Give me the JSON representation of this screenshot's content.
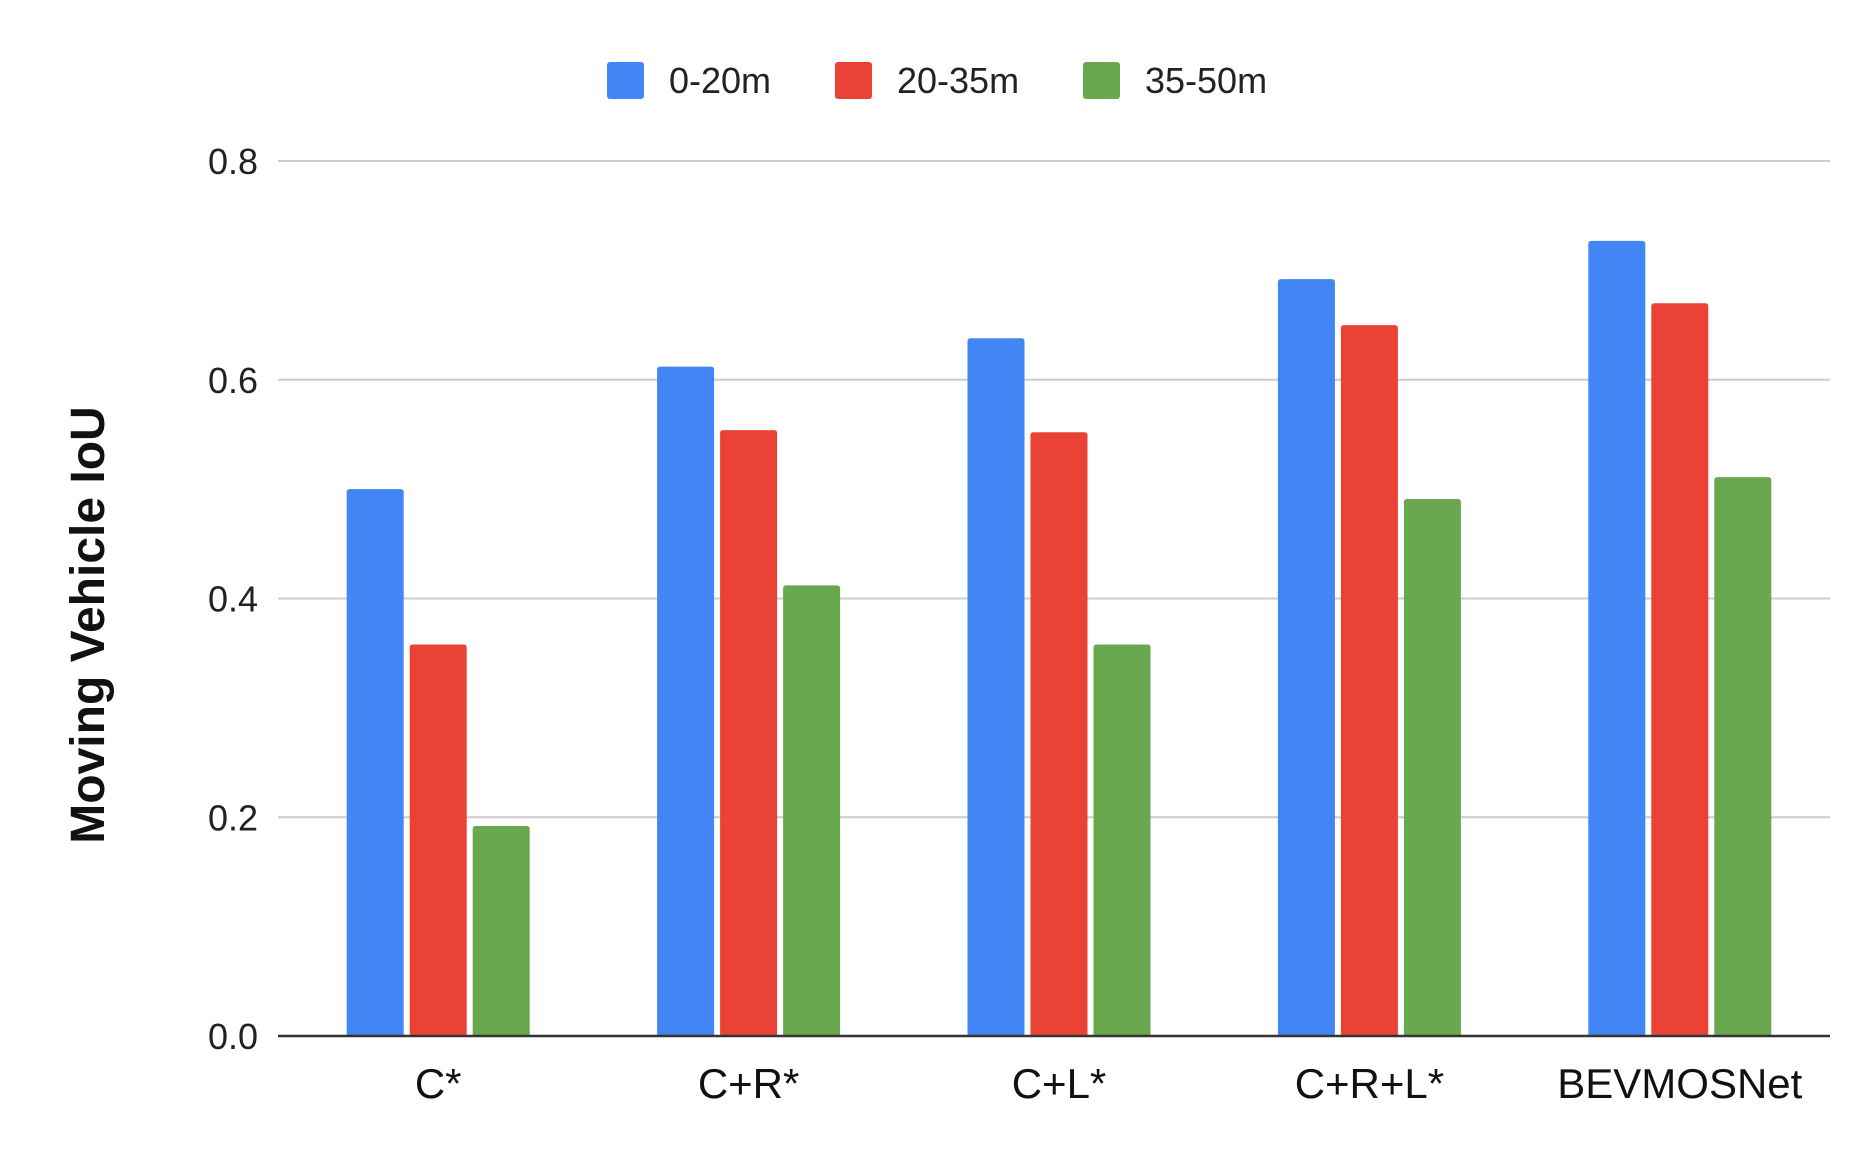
{
  "chart_data": {
    "type": "bar",
    "title": "",
    "xlabel": "",
    "ylabel": "Moving Vehicle IoU",
    "ylim": [
      0,
      0.8
    ],
    "yticks": [
      "0.0",
      "0.2",
      "0.4",
      "0.6",
      "0.8"
    ],
    "ytick_values": [
      0,
      0.2,
      0.4,
      0.6,
      0.8
    ],
    "categories": [
      "C*",
      "C+R*",
      "C+L*",
      "C+R+L*",
      "BEVMOSNet"
    ],
    "series": [
      {
        "name": "0-20m",
        "color": "#4285f4",
        "values": [
          0.5,
          0.612,
          0.638,
          0.692,
          0.727
        ]
      },
      {
        "name": "20-35m",
        "color": "#ea4335",
        "values": [
          0.358,
          0.554,
          0.552,
          0.65,
          0.67
        ]
      },
      {
        "name": "35-50m",
        "color": "#6aa84f",
        "values": [
          0.192,
          0.412,
          0.358,
          0.491,
          0.511
        ]
      }
    ],
    "legend_position": "top-center",
    "grid": true
  }
}
